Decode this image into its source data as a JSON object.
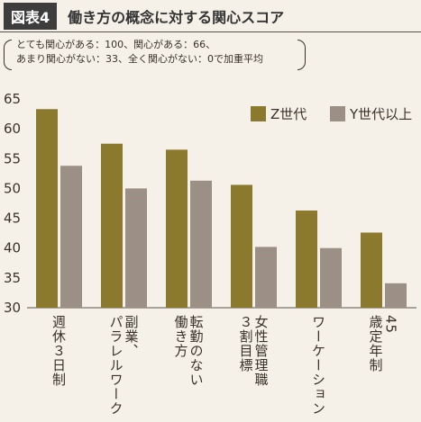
{
  "header": {
    "figure_label": "図表4",
    "title": "働き方の概念に対する関心スコア"
  },
  "note": {
    "line1": "とても関心がある：100、関心がある：66、",
    "line2": "あまり関心がない：33、全く関心がない：0で加重平均"
  },
  "colors": {
    "z": "#8b7a2e",
    "y": "#9c8f86"
  },
  "chart_data": {
    "type": "bar",
    "categories": [
      "週休3日制",
      "副業、パラレルワーク",
      "転勤のない働き方",
      "女性管理職3割目標",
      "ワーケーション",
      "45歳定年制"
    ],
    "category_lines": [
      [
        "週休３日制"
      ],
      [
        "副業、",
        "パラレルワーク"
      ],
      [
        "転勤のない",
        "働き方"
      ],
      [
        "女性管理職",
        "３割目標"
      ],
      [
        "ワーケーション"
      ],
      [
        "45",
        "歳定年制"
      ]
    ],
    "series": [
      {
        "name": "Z世代",
        "values": [
          63.3,
          57.5,
          56.5,
          50.6,
          46.3,
          42.6
        ]
      },
      {
        "name": "Y世代以上",
        "values": [
          53.8,
          50.0,
          51.3,
          40.2,
          40.0,
          34.1
        ]
      }
    ],
    "yticks": [
      30,
      35,
      40,
      45,
      50,
      55,
      60,
      65
    ],
    "ylim": [
      30,
      65
    ],
    "legend": "top-right",
    "grid": false
  }
}
